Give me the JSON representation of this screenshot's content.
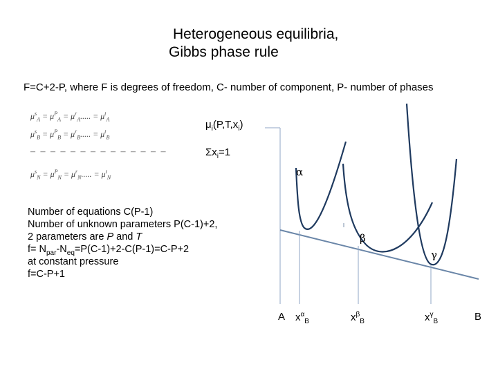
{
  "title": {
    "line1": "Heterogeneous equilibria,",
    "line2": "Gibbs phase rule"
  },
  "rule_text": "F=C+2-P, where F is degrees of freedom, C- number of component, P- number of phases",
  "equations": {
    "rows": [
      {
        "lhs": "μ",
        "sub": "A",
        "sup": "s",
        "rhs1": "μ",
        "rhs1_sub": "A",
        "rhs1_sup": "P",
        "rhs2": "μ",
        "rhs2_sub": "A",
        "rhs2_sup": "r",
        "dots": ".....",
        "rhs3": "μ",
        "rhs3_sub": "A",
        "rhs3_sup": "t"
      },
      {
        "lhs": "μ",
        "sub": "B",
        "sup": "s",
        "rhs1": "μ",
        "rhs1_sub": "B",
        "rhs1_sup": "P",
        "rhs2": "μ",
        "rhs2_sub": "B",
        "rhs2_sup": "r",
        "dots": ".....",
        "rhs3": "μ",
        "rhs3_sub": "B",
        "rhs3_sup": "t"
      },
      {
        "lhs": "μ",
        "sub": "N",
        "sup": "s",
        "rhs1": "μ",
        "rhs1_sub": "N",
        "rhs1_sup": "P",
        "rhs2": "μ",
        "rhs2_sub": "N",
        "rhs2_sup": "r",
        "dots": ".....",
        "rhs3": "μ",
        "rhs3_sub": "N",
        "rhs3_sup": "t"
      }
    ],
    "dashes": "– – – – – – – – – – – – – –"
  },
  "mu_label": {
    "main": "μ",
    "sub": "i",
    "args_open": "(P,T,x",
    "args_sub": "i",
    "args_close": ")"
  },
  "sum_label": {
    "main": "Σx",
    "sub": "i",
    "eq": "=1"
  },
  "text_lines": {
    "l1": "Number of equations C(P-1)",
    "l2": "Number of unknown parameters P(C-1)+2,",
    "l3_pre": "2  parameters are ",
    "l3_p": "P",
    "l3_mid": " and ",
    "l3_t": "T",
    "l4_a": "f= N",
    "l4_sub1": "par",
    "l4_b": "-N",
    "l4_sub2": "eq",
    "l4_c": "=P(C-1)+2-C(P-1)=C-P+2",
    "l5": "at constant pressure",
    "l6": "f=C-P+1"
  },
  "diagram": {
    "phase_labels": {
      "alpha": "α",
      "beta": "β",
      "gamma": "γ"
    },
    "axis": {
      "left": "A",
      "right": "B",
      "xa_main": "x",
      "xa_sup": "α",
      "xa_sub": "B",
      "xb_main": "x",
      "xb_sup": "β",
      "xb_sub": "B",
      "xg_main": "x",
      "xg_sup": "γ",
      "xg_sub": "B"
    },
    "colors": {
      "curve": "#1f3a5f",
      "tangent": "#6a86a8",
      "drop": "#8fa6c4"
    }
  }
}
